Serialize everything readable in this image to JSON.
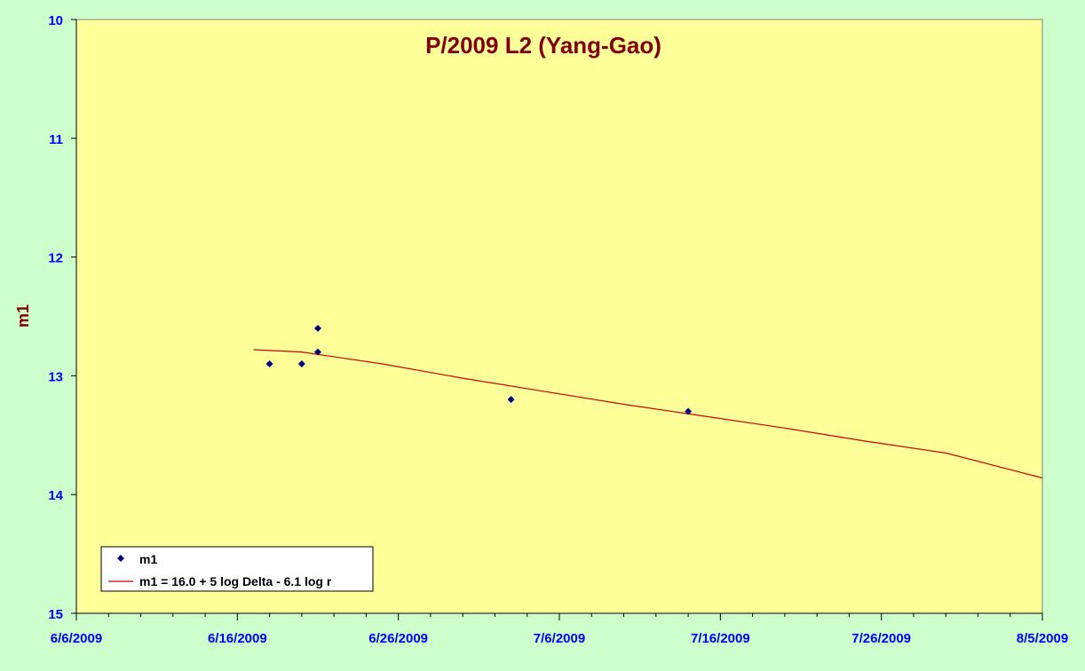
{
  "colors": {
    "background": "#ccffcc",
    "plot_area": "#ffff99",
    "title": "#800000",
    "axis_label": "#800000",
    "tick_label": "#0000ff",
    "marker": "#000080",
    "trend_line": "#cc0000",
    "axis": "#000000"
  },
  "chart_data": {
    "type": "scatter",
    "title": "P/2009 L2 (Yang-Gao)",
    "xlabel": "",
    "ylabel": "m1",
    "y_inverted": true,
    "ylim": [
      10,
      15
    ],
    "yticks": [
      "10",
      "11",
      "12",
      "13",
      "14",
      "15"
    ],
    "xlim": [
      "6/6/2009",
      "8/5/2009"
    ],
    "xticks": [
      "6/6/2009",
      "6/16/2009",
      "6/26/2009",
      "7/6/2009",
      "7/16/2009",
      "7/26/2009",
      "8/5/2009"
    ],
    "grid": false,
    "legend_position": "bottom-left",
    "series": [
      {
        "name": "m1",
        "kind": "scatter",
        "marker": "diamond",
        "points": [
          {
            "x": "6/18/2009",
            "y": 12.9
          },
          {
            "x": "6/20/2009",
            "y": 12.9
          },
          {
            "x": "6/21/2009",
            "y": 12.6
          },
          {
            "x": "6/21/2009",
            "y": 12.8
          },
          {
            "x": "7/3/2009",
            "y": 13.2
          },
          {
            "x": "7/14/2009",
            "y": 13.3
          }
        ]
      },
      {
        "name": "m1 = 16.0 + 5 log Delta - 6.1 log r",
        "kind": "line",
        "points": [
          {
            "x": "6/17/2009",
            "y": 12.78
          },
          {
            "x": "6/20/2009",
            "y": 12.8
          },
          {
            "x": "6/25/2009",
            "y": 12.9
          },
          {
            "x": "6/30/2009",
            "y": 13.02
          },
          {
            "x": "7/5/2009",
            "y": 13.13
          },
          {
            "x": "7/10/2009",
            "y": 13.24
          },
          {
            "x": "7/15/2009",
            "y": 13.34
          },
          {
            "x": "7/20/2009",
            "y": 13.44
          },
          {
            "x": "7/25/2009",
            "y": 13.55
          },
          {
            "x": "7/30/2009",
            "y": 13.65
          },
          {
            "x": "8/5/2009",
            "y": 13.86
          }
        ]
      }
    ]
  }
}
